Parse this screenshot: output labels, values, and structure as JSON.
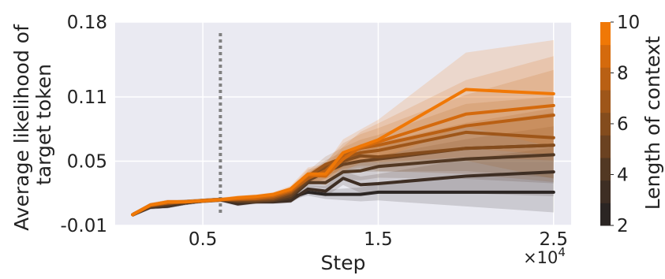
{
  "chart_data": {
    "type": "line",
    "title": "",
    "xlabel": "Step",
    "ylabel_lines": [
      "Average likelihood of",
      "target token"
    ],
    "x_multiplier_label": "×10",
    "x_multiplier_exponent": "4",
    "xlim": [
      0,
      2.6
    ],
    "ylim": [
      -0.01,
      0.18
    ],
    "xticks": [
      {
        "value": 0.5,
        "label": "0.5"
      },
      {
        "value": 1.5,
        "label": "1.5"
      },
      {
        "value": 2.5,
        "label": "2.5"
      }
    ],
    "yticks": [
      {
        "value": -0.01,
        "label": "-0.01"
      },
      {
        "value": 0.05,
        "label": "0.05"
      },
      {
        "value": 0.11,
        "label": "0.11"
      },
      {
        "value": 0.18,
        "label": "0.18"
      }
    ],
    "grid": true,
    "vline_x": 0.6,
    "x": [
      0.1,
      0.2,
      0.3,
      0.4,
      0.5,
      0.6,
      0.7,
      0.8,
      0.9,
      1.0,
      1.1,
      1.2,
      1.3,
      1.4,
      1.5,
      2.0,
      2.5
    ],
    "series": [
      {
        "context": 2,
        "color": "#2b2523",
        "values": [
          0.0,
          0.007,
          0.008,
          0.011,
          0.013,
          0.014,
          0.013,
          0.015,
          0.015,
          0.016,
          0.021,
          0.019,
          0.019,
          0.019,
          0.021,
          0.021,
          0.021
        ]
      },
      {
        "context": 3,
        "color": "#3e2e24",
        "values": [
          0.0,
          0.007,
          0.008,
          0.011,
          0.013,
          0.014,
          0.01,
          0.012,
          0.012,
          0.013,
          0.024,
          0.022,
          0.034,
          0.028,
          0.029,
          0.036,
          0.04
        ]
      },
      {
        "context": 4,
        "color": "#523823",
        "values": [
          0.0,
          0.008,
          0.009,
          0.011,
          0.013,
          0.014,
          0.012,
          0.012,
          0.013,
          0.016,
          0.03,
          0.03,
          0.04,
          0.041,
          0.045,
          0.052,
          0.056
        ]
      },
      {
        "context": 5,
        "color": "#6b4221",
        "values": [
          0.0,
          0.008,
          0.01,
          0.012,
          0.013,
          0.014,
          0.013,
          0.013,
          0.014,
          0.018,
          0.032,
          0.04,
          0.047,
          0.05,
          0.052,
          0.062,
          0.065
        ]
      },
      {
        "context": 6,
        "color": "#844c1d",
        "values": [
          0.0,
          0.008,
          0.011,
          0.012,
          0.013,
          0.014,
          0.014,
          0.014,
          0.015,
          0.02,
          0.034,
          0.044,
          0.05,
          0.055,
          0.054,
          0.062,
          0.065
        ]
      },
      {
        "context": 7,
        "color": "#9e5619",
        "values": [
          0.0,
          0.009,
          0.011,
          0.012,
          0.013,
          0.014,
          0.014,
          0.015,
          0.016,
          0.021,
          0.036,
          0.047,
          0.053,
          0.058,
          0.06,
          0.077,
          0.072
        ]
      },
      {
        "context": 8,
        "color": "#b96014",
        "values": [
          0.0,
          0.009,
          0.011,
          0.012,
          0.013,
          0.014,
          0.015,
          0.015,
          0.017,
          0.022,
          0.034,
          0.041,
          0.056,
          0.062,
          0.065,
          0.083,
          0.093
        ]
      },
      {
        "context": 9,
        "color": "#d46a0d",
        "values": [
          0.0,
          0.009,
          0.012,
          0.012,
          0.013,
          0.014,
          0.015,
          0.016,
          0.018,
          0.023,
          0.037,
          0.036,
          0.052,
          0.063,
          0.068,
          0.094,
          0.102
        ]
      },
      {
        "context": 10,
        "color": "#f07806",
        "values": [
          0.0,
          0.009,
          0.012,
          0.012,
          0.013,
          0.014,
          0.016,
          0.017,
          0.019,
          0.024,
          0.038,
          0.038,
          0.058,
          0.064,
          0.07,
          0.117,
          0.113
        ]
      }
    ],
    "colorbar": {
      "label": "Length of context",
      "min": 2,
      "max": 10,
      "ticks": [
        {
          "value": 2,
          "label": "2"
        },
        {
          "value": 4,
          "label": "4"
        },
        {
          "value": 6,
          "label": "6"
        },
        {
          "value": 8,
          "label": "8"
        },
        {
          "value": 10,
          "label": "10"
        }
      ],
      "colors": [
        "#2b2523",
        "#3e2e24",
        "#523823",
        "#6b4221",
        "#844c1d",
        "#9e5619",
        "#b96014",
        "#d46a0d",
        "#f07806"
      ]
    },
    "colors": {
      "plot_background": "#eaeaf2",
      "grid": "#ffffff",
      "vline": "#808080"
    }
  }
}
